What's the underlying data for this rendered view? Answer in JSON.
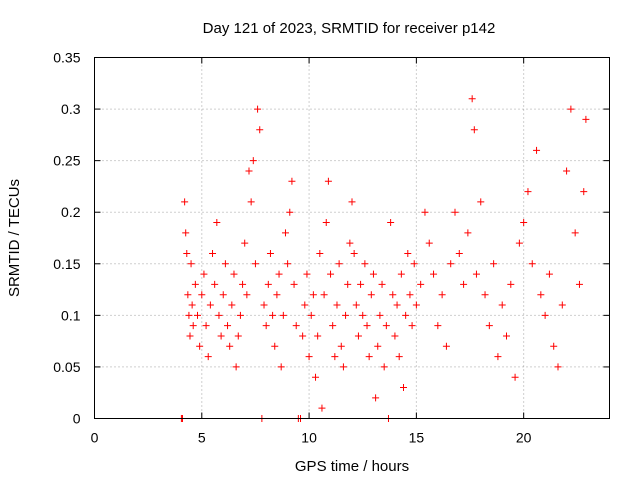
{
  "chart_data": {
    "type": "scatter",
    "title": "Day 121 of 2023, SRMTID for receiver p142",
    "xlabel": "GPS time / hours",
    "ylabel": "SRMTID / TECUs",
    "xlim": [
      0,
      24
    ],
    "ylim": [
      0,
      0.35
    ],
    "xticks": [
      0,
      5,
      10,
      15,
      20
    ],
    "xtick_labels": [
      "0",
      "5",
      "10",
      "15",
      "20"
    ],
    "yticks": [
      0,
      0.05,
      0.1,
      0.15,
      0.2,
      0.25,
      0.3,
      0.35
    ],
    "ytick_labels": [
      "0",
      "0.05",
      "0.1",
      "0.15",
      "0.2",
      "0.25",
      "0.3",
      "0.35"
    ],
    "grid": true,
    "marker": "plus",
    "color": "#ff0000",
    "series": [
      {
        "name": "SRMTID",
        "points": [
          [
            4.05,
            0.0
          ],
          [
            4.1,
            0.0
          ],
          [
            4.2,
            0.21
          ],
          [
            4.25,
            0.18
          ],
          [
            4.3,
            0.16
          ],
          [
            4.35,
            0.12
          ],
          [
            4.4,
            0.1
          ],
          [
            4.45,
            0.08
          ],
          [
            4.5,
            0.15
          ],
          [
            4.55,
            0.11
          ],
          [
            4.6,
            0.09
          ],
          [
            4.7,
            0.13
          ],
          [
            4.8,
            0.1
          ],
          [
            4.9,
            0.07
          ],
          [
            5.0,
            0.12
          ],
          [
            5.1,
            0.14
          ],
          [
            5.2,
            0.09
          ],
          [
            5.3,
            0.06
          ],
          [
            5.4,
            0.11
          ],
          [
            5.5,
            0.16
          ],
          [
            5.6,
            0.13
          ],
          [
            5.7,
            0.19
          ],
          [
            5.8,
            0.1
          ],
          [
            5.9,
            0.08
          ],
          [
            6.0,
            0.12
          ],
          [
            6.1,
            0.15
          ],
          [
            6.2,
            0.09
          ],
          [
            6.3,
            0.07
          ],
          [
            6.4,
            0.11
          ],
          [
            6.5,
            0.14
          ],
          [
            6.6,
            0.05
          ],
          [
            6.7,
            0.08
          ],
          [
            6.8,
            0.1
          ],
          [
            6.9,
            0.13
          ],
          [
            7.0,
            0.17
          ],
          [
            7.1,
            0.12
          ],
          [
            7.2,
            0.24
          ],
          [
            7.3,
            0.21
          ],
          [
            7.4,
            0.25
          ],
          [
            7.5,
            0.15
          ],
          [
            7.6,
            0.3
          ],
          [
            7.7,
            0.28
          ],
          [
            7.8,
            0.0
          ],
          [
            7.9,
            0.11
          ],
          [
            8.0,
            0.09
          ],
          [
            8.1,
            0.13
          ],
          [
            8.2,
            0.16
          ],
          [
            8.3,
            0.1
          ],
          [
            8.4,
            0.07
          ],
          [
            8.5,
            0.12
          ],
          [
            8.6,
            0.14
          ],
          [
            8.7,
            0.05
          ],
          [
            8.8,
            0.1
          ],
          [
            8.9,
            0.18
          ],
          [
            9.0,
            0.15
          ],
          [
            9.1,
            0.2
          ],
          [
            9.2,
            0.23
          ],
          [
            9.3,
            0.13
          ],
          [
            9.4,
            0.09
          ],
          [
            9.5,
            0.0
          ],
          [
            9.6,
            0.0
          ],
          [
            9.7,
            0.08
          ],
          [
            9.8,
            0.11
          ],
          [
            9.9,
            0.14
          ],
          [
            10.0,
            0.06
          ],
          [
            10.1,
            0.1
          ],
          [
            10.2,
            0.12
          ],
          [
            10.3,
            0.04
          ],
          [
            10.4,
            0.08
          ],
          [
            10.5,
            0.16
          ],
          [
            10.6,
            0.01
          ],
          [
            10.7,
            0.12
          ],
          [
            10.8,
            0.19
          ],
          [
            10.9,
            0.23
          ],
          [
            11.0,
            0.14
          ],
          [
            11.1,
            0.09
          ],
          [
            11.2,
            0.06
          ],
          [
            11.3,
            0.11
          ],
          [
            11.4,
            0.15
          ],
          [
            11.5,
            0.07
          ],
          [
            11.6,
            0.05
          ],
          [
            11.7,
            0.1
          ],
          [
            11.8,
            0.13
          ],
          [
            11.9,
            0.17
          ],
          [
            12.0,
            0.21
          ],
          [
            12.1,
            0.16
          ],
          [
            12.2,
            0.11
          ],
          [
            12.3,
            0.08
          ],
          [
            12.4,
            0.13
          ],
          [
            12.5,
            0.1
          ],
          [
            12.6,
            0.15
          ],
          [
            12.7,
            0.09
          ],
          [
            12.8,
            0.06
          ],
          [
            12.9,
            0.12
          ],
          [
            13.0,
            0.14
          ],
          [
            13.1,
            0.02
          ],
          [
            13.2,
            0.07
          ],
          [
            13.3,
            0.1
          ],
          [
            13.4,
            0.13
          ],
          [
            13.5,
            0.05
          ],
          [
            13.6,
            0.09
          ],
          [
            13.7,
            0.0
          ],
          [
            13.8,
            0.19
          ],
          [
            13.9,
            0.12
          ],
          [
            14.0,
            0.08
          ],
          [
            14.1,
            0.11
          ],
          [
            14.2,
            0.06
          ],
          [
            14.3,
            0.14
          ],
          [
            14.4,
            0.03
          ],
          [
            14.5,
            0.1
          ],
          [
            14.6,
            0.16
          ],
          [
            14.7,
            0.12
          ],
          [
            14.8,
            0.09
          ],
          [
            14.9,
            0.15
          ],
          [
            15.0,
            0.11
          ],
          [
            15.2,
            0.13
          ],
          [
            15.4,
            0.2
          ],
          [
            15.6,
            0.17
          ],
          [
            15.8,
            0.14
          ],
          [
            16.0,
            0.09
          ],
          [
            16.2,
            0.12
          ],
          [
            16.4,
            0.07
          ],
          [
            16.6,
            0.15
          ],
          [
            16.8,
            0.2
          ],
          [
            17.0,
            0.16
          ],
          [
            17.2,
            0.13
          ],
          [
            17.4,
            0.18
          ],
          [
            17.6,
            0.31
          ],
          [
            17.7,
            0.28
          ],
          [
            17.8,
            0.14
          ],
          [
            18.0,
            0.21
          ],
          [
            18.2,
            0.12
          ],
          [
            18.4,
            0.09
          ],
          [
            18.6,
            0.15
          ],
          [
            18.8,
            0.06
          ],
          [
            19.0,
            0.11
          ],
          [
            19.2,
            0.08
          ],
          [
            19.4,
            0.13
          ],
          [
            19.6,
            0.04
          ],
          [
            19.8,
            0.17
          ],
          [
            20.0,
            0.19
          ],
          [
            20.2,
            0.22
          ],
          [
            20.4,
            0.15
          ],
          [
            20.6,
            0.26
          ],
          [
            20.8,
            0.12
          ],
          [
            21.0,
            0.1
          ],
          [
            21.2,
            0.14
          ],
          [
            21.4,
            0.07
          ],
          [
            21.6,
            0.05
          ],
          [
            21.8,
            0.11
          ],
          [
            22.0,
            0.24
          ],
          [
            22.2,
            0.3
          ],
          [
            22.4,
            0.18
          ],
          [
            22.6,
            0.13
          ],
          [
            22.8,
            0.22
          ],
          [
            22.9,
            0.29
          ]
        ]
      }
    ]
  }
}
